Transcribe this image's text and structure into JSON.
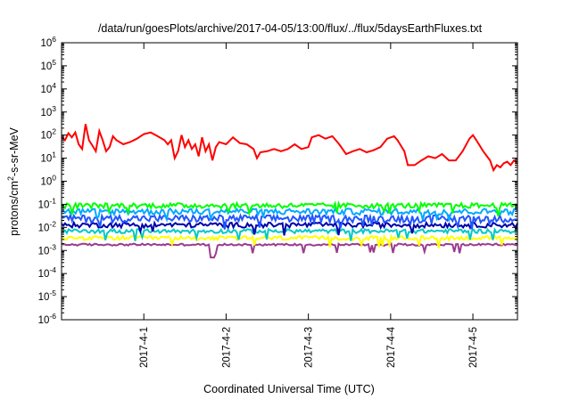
{
  "chart_data": {
    "type": "line",
    "title": "/data/run/goesPlots/archive/2017-04-05/13:00/flux/../flux/5daysEarthFluxes.txt",
    "xlabel": "Coordinated Universal Time (UTC)",
    "ylabel": {
      "base": "protons/cm",
      "sup": "2",
      "rest": "-s-sr-MeV"
    },
    "y_scale": "log",
    "grid": false,
    "legend": "none",
    "xlim": [
      "2017-03-31 00:00",
      "2017-04-05 13:00"
    ],
    "ylim": [
      1e-06,
      1000000.0
    ],
    "x_ticks": [
      {
        "date": "2017-04-01 00:00",
        "label": "2017-4-1"
      },
      {
        "date": "2017-04-02 00:00",
        "label": "2017-4-2"
      },
      {
        "date": "2017-04-03 00:00",
        "label": "2017-4-3"
      },
      {
        "date": "2017-04-04 00:00",
        "label": "2017-4-4"
      },
      {
        "date": "2017-04-05 00:00",
        "label": "2017-4-5"
      }
    ],
    "y_ticks": [
      {
        "value": 1000000.0,
        "base": "10",
        "exp": "6"
      },
      {
        "value": 100000.0,
        "base": "10",
        "exp": "5"
      },
      {
        "value": 10000.0,
        "base": "10",
        "exp": "4"
      },
      {
        "value": 1000.0,
        "base": "10",
        "exp": "3"
      },
      {
        "value": 100.0,
        "base": "10",
        "exp": "2"
      },
      {
        "value": 10.0,
        "base": "10",
        "exp": "1"
      },
      {
        "value": 1.0,
        "base": "10",
        "exp": "0"
      },
      {
        "value": 0.1,
        "base": "10",
        "exp": "-1"
      },
      {
        "value": 0.01,
        "base": "10",
        "exp": "-2"
      },
      {
        "value": 0.001,
        "base": "10",
        "exp": "-3"
      },
      {
        "value": 0.0001,
        "base": "10",
        "exp": "-4"
      },
      {
        "value": 1e-05,
        "base": "10",
        "exp": "-5"
      },
      {
        "value": 1e-06,
        "base": "10",
        "exp": "-6"
      }
    ],
    "series": [
      {
        "color": "#ff0000",
        "values": [
          [
            "2017-03-31 00:00",
            80
          ],
          [
            "2017-03-31 01:00",
            60
          ],
          [
            "2017-03-31 02:00",
            120
          ],
          [
            "2017-03-31 03:00",
            80
          ],
          [
            "2017-03-31 04:00",
            130
          ],
          [
            "2017-03-31 05:00",
            40
          ],
          [
            "2017-03-31 06:00",
            25
          ],
          [
            "2017-03-31 07:00",
            300
          ],
          [
            "2017-03-31 08:00",
            60
          ],
          [
            "2017-03-31 09:00",
            35
          ],
          [
            "2017-03-31 10:00",
            20
          ],
          [
            "2017-03-31 11:00",
            150
          ],
          [
            "2017-03-31 12:00",
            60
          ],
          [
            "2017-03-31 13:00",
            20
          ],
          [
            "2017-03-31 14:00",
            30
          ],
          [
            "2017-03-31 15:00",
            90
          ],
          [
            "2017-03-31 16:00",
            60
          ],
          [
            "2017-03-31 18:00",
            40
          ],
          [
            "2017-03-31 20:00",
            50
          ],
          [
            "2017-03-31 22:00",
            70
          ],
          [
            "2017-04-01 00:00",
            110
          ],
          [
            "2017-04-01 02:00",
            130
          ],
          [
            "2017-04-01 04:00",
            90
          ],
          [
            "2017-04-01 06:00",
            60
          ],
          [
            "2017-04-01 07:00",
            40
          ],
          [
            "2017-04-01 08:00",
            60
          ],
          [
            "2017-04-01 09:00",
            10
          ],
          [
            "2017-04-01 10:00",
            20
          ],
          [
            "2017-04-01 11:00",
            100
          ],
          [
            "2017-04-01 12:00",
            30
          ],
          [
            "2017-04-01 13:00",
            60
          ],
          [
            "2017-04-01 14:00",
            25
          ],
          [
            "2017-04-01 15:00",
            40
          ],
          [
            "2017-04-01 16:00",
            12
          ],
          [
            "2017-04-01 17:00",
            80
          ],
          [
            "2017-04-01 18:00",
            20
          ],
          [
            "2017-04-01 19:00",
            40
          ],
          [
            "2017-04-01 20:00",
            8
          ],
          [
            "2017-04-01 21:00",
            30
          ],
          [
            "2017-04-01 22:00",
            50
          ],
          [
            "2017-04-02 00:00",
            40
          ],
          [
            "2017-04-02 02:00",
            80
          ],
          [
            "2017-04-02 04:00",
            45
          ],
          [
            "2017-04-02 06:00",
            40
          ],
          [
            "2017-04-02 08:00",
            25
          ],
          [
            "2017-04-02 09:00",
            10
          ],
          [
            "2017-04-02 10:00",
            18
          ],
          [
            "2017-04-02 12:00",
            20
          ],
          [
            "2017-04-02 14:00",
            25
          ],
          [
            "2017-04-02 16:00",
            20
          ],
          [
            "2017-04-02 18:00",
            25
          ],
          [
            "2017-04-02 20:00",
            40
          ],
          [
            "2017-04-02 22:00",
            25
          ],
          [
            "2017-04-03 00:00",
            30
          ],
          [
            "2017-04-03 01:00",
            80
          ],
          [
            "2017-04-03 03:00",
            100
          ],
          [
            "2017-04-03 05:00",
            70
          ],
          [
            "2017-04-03 07:00",
            90
          ],
          [
            "2017-04-03 09:00",
            40
          ],
          [
            "2017-04-03 11:00",
            15
          ],
          [
            "2017-04-03 13:00",
            20
          ],
          [
            "2017-04-03 15:00",
            25
          ],
          [
            "2017-04-03 17:00",
            18
          ],
          [
            "2017-04-03 19:00",
            22
          ],
          [
            "2017-04-03 21:00",
            30
          ],
          [
            "2017-04-03 23:00",
            70
          ],
          [
            "2017-04-04 01:00",
            90
          ],
          [
            "2017-04-04 02:00",
            60
          ],
          [
            "2017-04-04 04:00",
            20
          ],
          [
            "2017-04-04 05:00",
            5
          ],
          [
            "2017-04-04 07:00",
            5
          ],
          [
            "2017-04-04 09:00",
            8
          ],
          [
            "2017-04-04 11:00",
            12
          ],
          [
            "2017-04-04 13:00",
            10
          ],
          [
            "2017-04-04 15:00",
            15
          ],
          [
            "2017-04-04 17:00",
            8
          ],
          [
            "2017-04-04 19:00",
            8
          ],
          [
            "2017-04-04 21:00",
            20
          ],
          [
            "2017-04-04 23:00",
            70
          ],
          [
            "2017-04-05 00:00",
            100
          ],
          [
            "2017-04-05 01:00",
            60
          ],
          [
            "2017-04-05 03:00",
            20
          ],
          [
            "2017-04-05 05:00",
            8
          ],
          [
            "2017-04-05 06:00",
            3
          ],
          [
            "2017-04-05 07:00",
            5
          ],
          [
            "2017-04-05 08:00",
            4
          ],
          [
            "2017-04-05 09:00",
            6
          ],
          [
            "2017-04-05 10:00",
            7
          ],
          [
            "2017-04-05 11:00",
            5
          ],
          [
            "2017-04-05 12:00",
            8
          ],
          [
            "2017-04-05 13:00",
            6
          ]
        ]
      },
      {
        "color": "#00ff00",
        "level": 0.09,
        "spread": 0.25
      },
      {
        "color": "#00aaff",
        "level": 0.05,
        "spread": 0.3
      },
      {
        "color": "#2255ff",
        "level": 0.025,
        "spread": 0.35
      },
      {
        "color": "#0000aa",
        "level": 0.013,
        "spread": 0.25
      },
      {
        "color": "#00c8c8",
        "level": 0.007,
        "spread": 0.2
      },
      {
        "color": "#ffff00",
        "level": 0.0035,
        "spread": 0.2
      },
      {
        "color": "#9b3b8f",
        "level": 0.0018,
        "spread": 0.1
      }
    ]
  }
}
